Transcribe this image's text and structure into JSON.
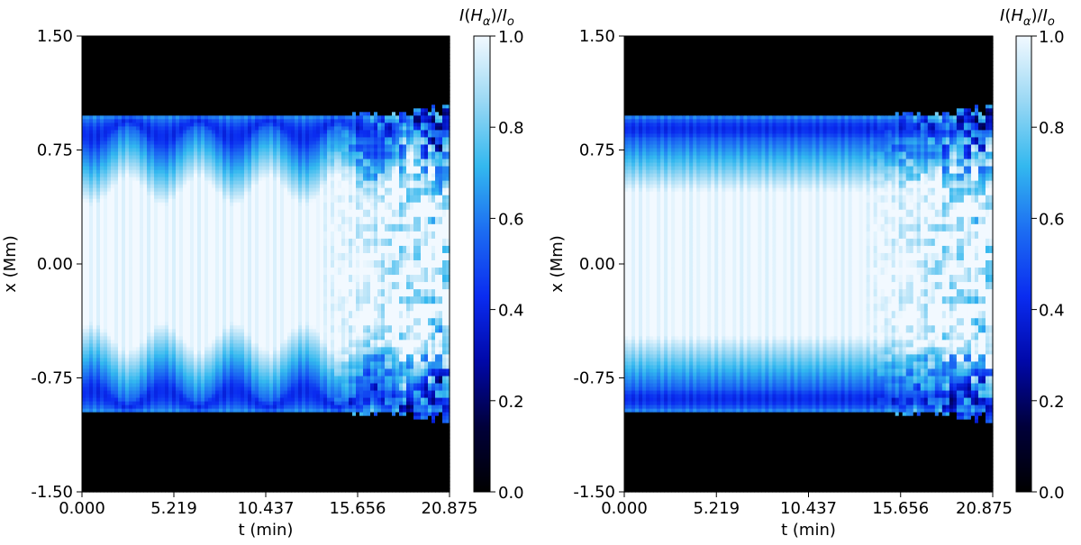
{
  "chart_data": [
    {
      "type": "heatmap",
      "xlabel": "t (min)",
      "ylabel": "x (Mm)",
      "xlim": [
        0.0,
        20.875
      ],
      "ylim": [
        -1.5,
        1.5
      ],
      "x_ticks": [
        "0.000",
        "5.219",
        "10.437",
        "15.656",
        "20.875"
      ],
      "y_ticks": [
        "1.50",
        "0.75",
        "0.00",
        "-0.75",
        "-1.50"
      ],
      "colorbar": {
        "label": "I(H_α)/I_o",
        "label_parts": {
          "i": "I",
          "open": "(",
          "h": "H",
          "sub": "α",
          "mid": ")/",
          "i2": "I",
          "sub2": "o"
        },
        "range": [
          0.0,
          1.0
        ],
        "ticks": [
          "0.0",
          "0.2",
          "0.4",
          "0.6",
          "0.8",
          "1.0"
        ],
        "colormap": [
          "#000000",
          "#00003a",
          "#0008a8",
          "#0a2cf0",
          "#1c6cf2",
          "#33b8ef",
          "#9ad8f4",
          "#f2f9ff"
        ]
      },
      "field": {
        "background_value": 0.0,
        "band_half_width_Mm": 0.98,
        "dark_rim_half_width_Mm": 0.82,
        "core_value": 1.0,
        "oscillation_amplitude_Mm": 0.09,
        "oscillation_period_min": 4.0,
        "turbulence_onset_min": 13.5
      }
    },
    {
      "type": "heatmap",
      "xlabel": "t (min)",
      "ylabel": "x (Mm)",
      "xlim": [
        0.0,
        20.875
      ],
      "ylim": [
        -1.5,
        1.5
      ],
      "x_ticks": [
        "0.000",
        "5.219",
        "10.437",
        "15.656",
        "20.875"
      ],
      "y_ticks": [
        "1.50",
        "0.75",
        "0.00",
        "-0.75",
        "-1.50"
      ],
      "colorbar": {
        "label": "I(H_α)/I_o",
        "label_parts": {
          "i": "I",
          "open": "(",
          "h": "H",
          "sub": "α",
          "mid": ")/",
          "i2": "I",
          "sub2": "o"
        },
        "range": [
          0.0,
          1.0
        ],
        "ticks": [
          "0.0",
          "0.2",
          "0.4",
          "0.6",
          "0.8",
          "1.0"
        ],
        "colormap": [
          "#000000",
          "#00003a",
          "#0008a8",
          "#0a2cf0",
          "#1c6cf2",
          "#33b8ef",
          "#9ad8f4",
          "#f2f9ff"
        ]
      },
      "field": {
        "background_value": 0.0,
        "band_half_width_Mm": 0.98,
        "dark_rim_half_width_Mm": 0.82,
        "core_value": 1.0,
        "oscillation_amplitude_Mm": 0.0,
        "oscillation_period_min": 4.0,
        "turbulence_onset_min": 13.5
      }
    }
  ]
}
